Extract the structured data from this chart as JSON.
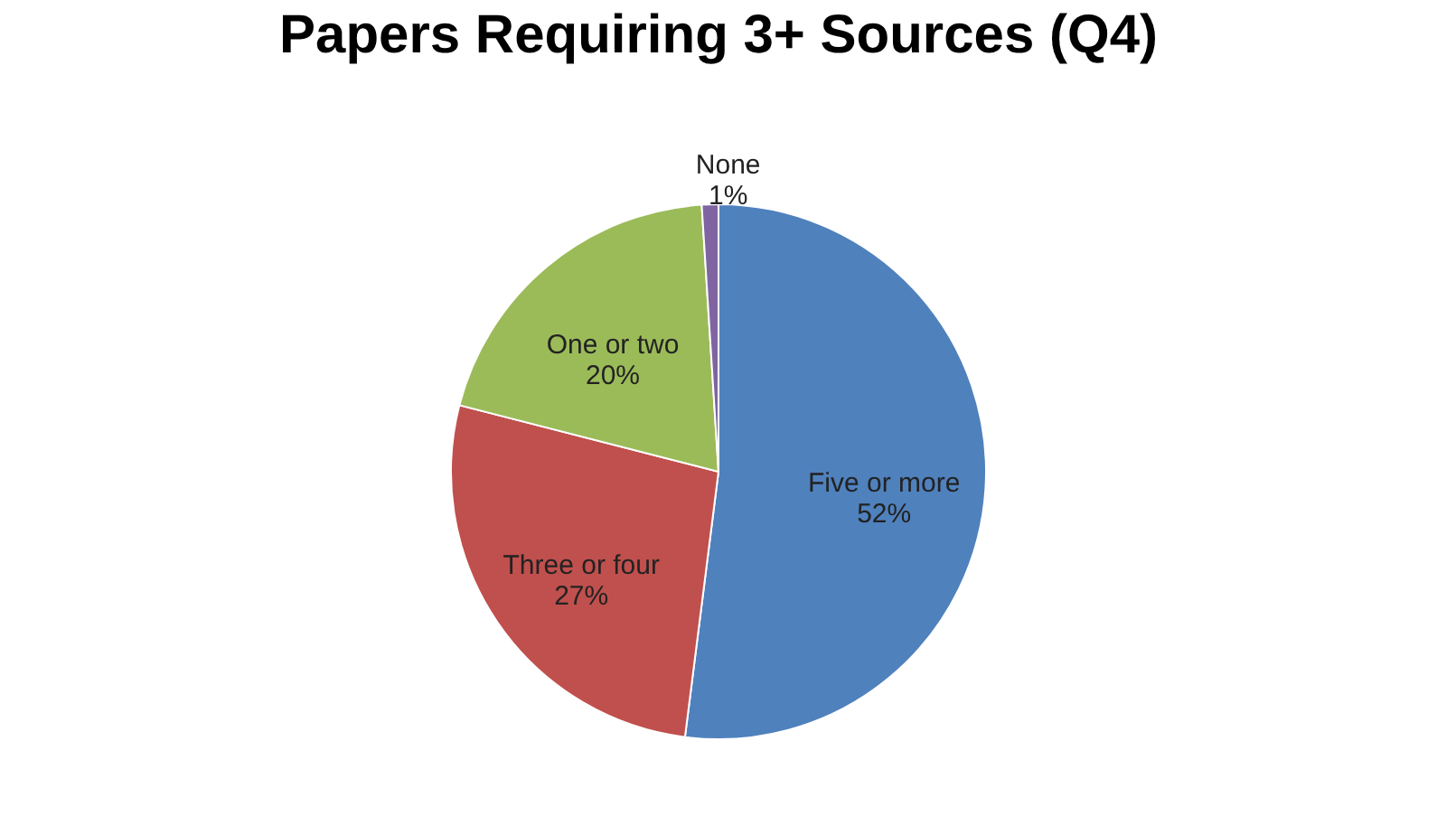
{
  "chart_data": {
    "type": "pie",
    "title": "Papers Requiring  3+ Sources (Q4)",
    "categories": [
      "Five or more",
      "Three or four",
      "One or two",
      "None"
    ],
    "values": [
      52,
      27,
      20,
      1
    ],
    "colors": [
      "#4f81bd",
      "#c0504d",
      "#9bbb59",
      "#8064a2"
    ],
    "value_labels": [
      "52%",
      "27%",
      "20%",
      "1%"
    ],
    "legend": false
  }
}
